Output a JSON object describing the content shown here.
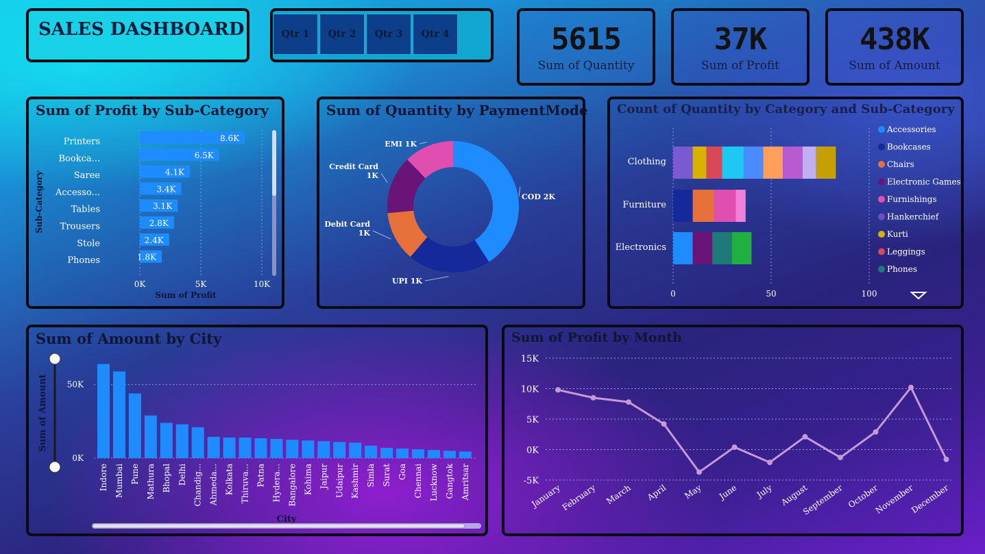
{
  "header": {
    "title": "SALES DASHBOARD"
  },
  "quarters": [
    "Qtr 1",
    "Qtr 2",
    "Qtr 3",
    "Qtr 4"
  ],
  "kpis": [
    {
      "value": "5615",
      "label": "Sum of Quantity"
    },
    {
      "value": "37K",
      "label": "Sum of Profit"
    },
    {
      "value": "438K",
      "label": "Sum of Amount"
    }
  ],
  "colors": {
    "bar": "#1e8cff",
    "line": "#c49ad8",
    "panel_border": "#0a0a12"
  },
  "chart_data": [
    {
      "id": "profit_by_subcategory",
      "type": "bar",
      "orientation": "horizontal",
      "title": "Sum of Profit by Sub-Category",
      "xlabel": "Sum of Profit",
      "ylabel": "Sub-Category",
      "categories": [
        "Printers",
        "Bookca...",
        "Saree",
        "Accesso...",
        "Tables",
        "Trousers",
        "Stole",
        "Phones"
      ],
      "values": [
        8600,
        6500,
        4100,
        3400,
        3100,
        2800,
        2400,
        1800
      ],
      "data_labels": [
        "8.6K",
        "6.5K",
        "4.1K",
        "3.4K",
        "3.1K",
        "2.8K",
        "2.4K",
        "1.8K"
      ],
      "xticks": [
        "0K",
        "5K",
        "10K"
      ],
      "xlim": [
        0,
        10000
      ]
    },
    {
      "id": "quantity_by_paymentmode",
      "type": "pie",
      "donut": true,
      "title": "Sum of Quantity by PaymentMode",
      "slices": [
        {
          "label": "COD 2K",
          "value": 2000,
          "color": "#1e8cff"
        },
        {
          "label": "UPI 1K",
          "value": 1000,
          "color": "#15299a"
        },
        {
          "label": "Debit Card 1K",
          "value": 600,
          "color": "#e8703a"
        },
        {
          "label": "Credit Card 1K",
          "value": 700,
          "color": "#6a1478"
        },
        {
          "label": "EMI 1K",
          "value": 600,
          "color": "#e04fb0"
        }
      ]
    },
    {
      "id": "count_by_category",
      "type": "bar",
      "stacked": true,
      "orientation": "horizontal",
      "title": "Count of Quantity by Category and Sub-Category",
      "categories": [
        "Clothing",
        "Furniture",
        "Electronics"
      ],
      "xticks": [
        "0",
        "50",
        "100"
      ],
      "xlim": [
        0,
        100
      ],
      "legend": [
        {
          "name": "Accessories",
          "color": "#1e8cff"
        },
        {
          "name": "Bookcases",
          "color": "#15299a"
        },
        {
          "name": "Chairs",
          "color": "#e8703a"
        },
        {
          "name": "Electronic Games",
          "color": "#6a1478"
        },
        {
          "name": "Furnishings",
          "color": "#e04fb0"
        },
        {
          "name": "Hankerchief",
          "color": "#6c4fc8"
        },
        {
          "name": "Kurti",
          "color": "#d9b100"
        },
        {
          "name": "Leggings",
          "color": "#d94858"
        },
        {
          "name": "Phones",
          "color": "#1d7a78"
        }
      ],
      "segments": [
        [
          {
            "value": 10,
            "color": "#7a5ad0"
          },
          {
            "value": 7,
            "color": "#d9b100"
          },
          {
            "value": 8,
            "color": "#d94858"
          },
          {
            "value": 11,
            "color": "#1ec8f0"
          },
          {
            "value": 10,
            "color": "#4a8cff"
          },
          {
            "value": 10,
            "color": "#ff9f5a"
          },
          {
            "value": 10,
            "color": "#b85ad0"
          },
          {
            "value": 7,
            "color": "#c0b0f0"
          },
          {
            "value": 10,
            "color": "#c4a000"
          }
        ],
        [
          {
            "value": 10,
            "color": "#15299a"
          },
          {
            "value": 11,
            "color": "#e8703a"
          },
          {
            "value": 11,
            "color": "#e04fb0"
          },
          {
            "value": 5,
            "color": "#f080d8"
          }
        ],
        [
          {
            "value": 10,
            "color": "#1e8cff"
          },
          {
            "value": 10,
            "color": "#6a1478"
          },
          {
            "value": 10,
            "color": "#1d7a78"
          },
          {
            "value": 10,
            "color": "#1fb040"
          }
        ]
      ]
    },
    {
      "id": "amount_by_city",
      "type": "bar",
      "title": "Sum of Amount by City",
      "xlabel": "City",
      "ylabel": "Sum of Amount",
      "categories": [
        "Indore",
        "Mumbai",
        "Pune",
        "Mathura",
        "Bhopal",
        "Delhi",
        "Chandig...",
        "Ahmeda...",
        "Kolkata",
        "Thiruva...",
        "Patna",
        "Hydera...",
        "Bangalore",
        "Kohima",
        "Jaipur",
        "Udaipur",
        "Kashmir",
        "Simla",
        "Surat",
        "Goa",
        "Chennai",
        "Lucknow",
        "Gangtok",
        "Amritsar"
      ],
      "values": [
        64000,
        59000,
        44000,
        29000,
        24000,
        23000,
        21000,
        14500,
        14000,
        14000,
        13500,
        13000,
        12500,
        12000,
        11500,
        11000,
        10500,
        8500,
        7000,
        6500,
        6000,
        5500,
        5000,
        4500
      ],
      "yticks": [
        "0K",
        "50K"
      ],
      "ylim": [
        0,
        75000
      ]
    },
    {
      "id": "profit_by_month",
      "type": "line",
      "title": "Sum of Profit by Month",
      "categories": [
        "January",
        "February",
        "March",
        "April",
        "May",
        "June",
        "July",
        "August",
        "September",
        "October",
        "November",
        "December"
      ],
      "values": [
        9800,
        8500,
        7800,
        4200,
        -3700,
        400,
        -2100,
        2100,
        -1300,
        2900,
        10200,
        -1600
      ],
      "yticks": [
        "15K",
        "10K",
        "5K",
        "0K",
        "-5K"
      ],
      "ylim": [
        -5000,
        15000
      ]
    }
  ]
}
